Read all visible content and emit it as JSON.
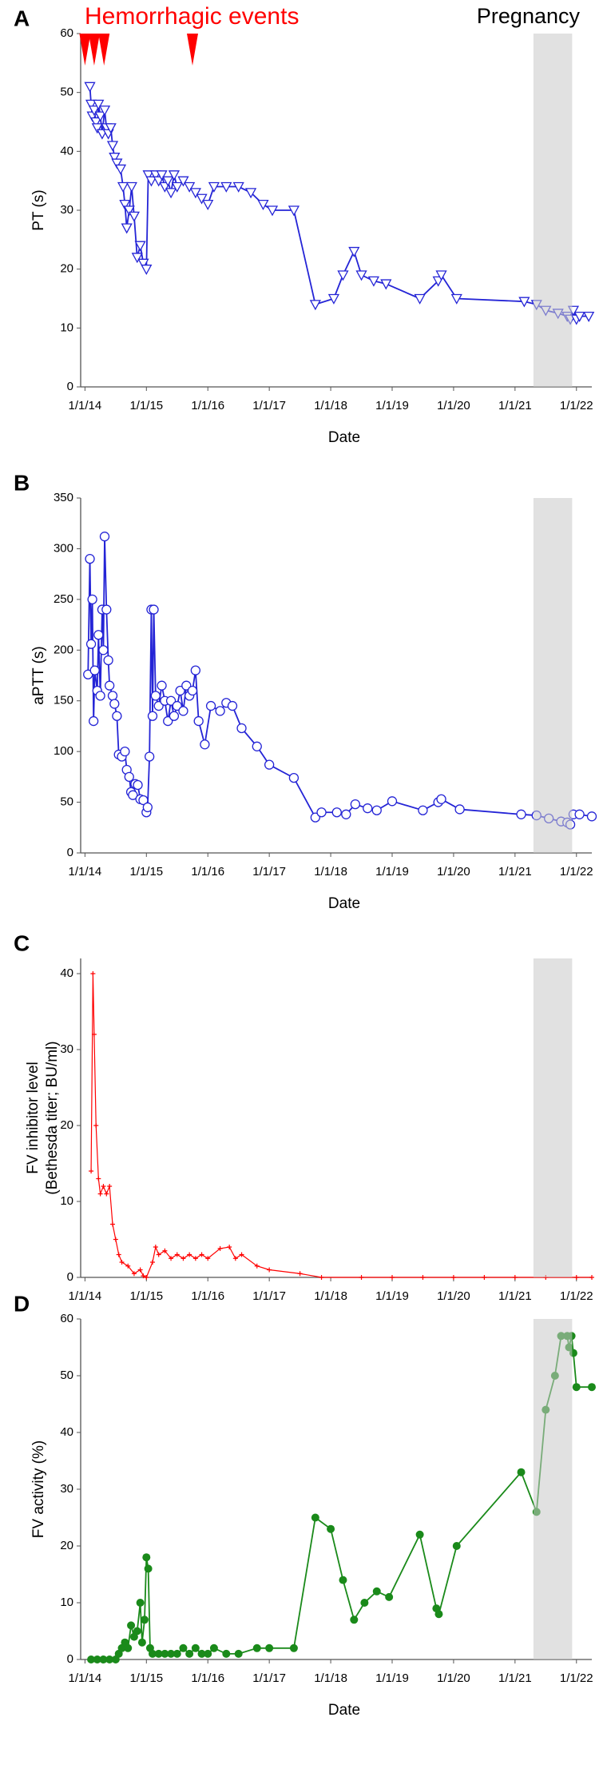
{
  "chart_data": [
    {
      "type": "line",
      "panel": "A",
      "ylabel": [
        "PT (s)"
      ],
      "xlabel": "Date",
      "color": "#2424d6",
      "marker": "triangle-down",
      "event_label": "Hemorrhagic events",
      "event_x": [
        2014.0,
        2014.15,
        2014.31,
        2015.75
      ],
      "event_color": "#ff0000",
      "shaded_label": "Pregnancy",
      "shaded_x": [
        2021.3,
        2021.93
      ],
      "xlim": [
        2013.93,
        2022.25
      ],
      "ylim": [
        0,
        60
      ],
      "yticks": [
        0,
        10,
        20,
        30,
        40,
        50,
        60
      ],
      "xticks": [
        {
          "value": 2014,
          "label": "1/1/14"
        },
        {
          "value": 2015,
          "label": "1/1/15"
        },
        {
          "value": 2016,
          "label": "1/1/16"
        },
        {
          "value": 2017,
          "label": "1/1/17"
        },
        {
          "value": 2018,
          "label": "1/1/18"
        },
        {
          "value": 2019,
          "label": "1/1/19"
        },
        {
          "value": 2020,
          "label": "1/1/20"
        },
        {
          "value": 2021,
          "label": "1/1/21"
        },
        {
          "value": 2022,
          "label": "1/1/22"
        }
      ],
      "x": [
        2014.08,
        2014.1,
        2014.12,
        2014.15,
        2014.18,
        2014.2,
        2014.22,
        2014.25,
        2014.28,
        2014.32,
        2014.35,
        2014.38,
        2014.42,
        2014.45,
        2014.48,
        2014.52,
        2014.58,
        2014.62,
        2014.65,
        2014.68,
        2014.72,
        2014.76,
        2014.8,
        2014.85,
        2014.9,
        2014.95,
        2015.0,
        2015.03,
        2015.08,
        2015.15,
        2015.2,
        2015.25,
        2015.3,
        2015.35,
        2015.4,
        2015.45,
        2015.5,
        2015.6,
        2015.7,
        2015.8,
        2015.9,
        2016.0,
        2016.1,
        2016.3,
        2016.5,
        2016.7,
        2016.9,
        2017.05,
        2017.4,
        2017.75,
        2018.05,
        2018.2,
        2018.38,
        2018.5,
        2018.7,
        2018.9,
        2019.45,
        2019.75,
        2019.8,
        2020.05,
        2021.15,
        2021.35,
        2021.5,
        2021.7,
        2021.85,
        2021.9,
        2021.95,
        2022.0,
        2022.05,
        2022.2
      ],
      "values": [
        51,
        48,
        46,
        47,
        45,
        44,
        48,
        46,
        43,
        47,
        44,
        43,
        44,
        41,
        39,
        38,
        37,
        34,
        31,
        27,
        30,
        34,
        29,
        22,
        24,
        21,
        20,
        36,
        35,
        36,
        35,
        36,
        34,
        35,
        33,
        36,
        34,
        35,
        34,
        33,
        32,
        31,
        34,
        34,
        34,
        33,
        31,
        30,
        30,
        14,
        15,
        19,
        23,
        19,
        18,
        17.5,
        15,
        18,
        19,
        15,
        14.5,
        14,
        13,
        12.5,
        12,
        11.5,
        13,
        11.5,
        12,
        12
      ]
    },
    {
      "type": "line",
      "panel": "B",
      "ylabel": [
        "aPTT (s)"
      ],
      "xlabel": "Date",
      "color": "#2424d6",
      "marker": "circle-open",
      "shaded_x": [
        2021.3,
        2021.93
      ],
      "xlim": [
        2013.93,
        2022.25
      ],
      "ylim": [
        0,
        350
      ],
      "yticks": [
        0,
        50,
        100,
        150,
        200,
        250,
        300,
        350
      ],
      "xticks": [
        {
          "value": 2014,
          "label": "1/1/14"
        },
        {
          "value": 2015,
          "label": "1/1/15"
        },
        {
          "value": 2016,
          "label": "1/1/16"
        },
        {
          "value": 2017,
          "label": "1/1/17"
        },
        {
          "value": 2018,
          "label": "1/1/18"
        },
        {
          "value": 2019,
          "label": "1/1/19"
        },
        {
          "value": 2020,
          "label": "1/1/20"
        },
        {
          "value": 2021,
          "label": "1/1/21"
        },
        {
          "value": 2022,
          "label": "1/1/22"
        }
      ],
      "x": [
        2014.05,
        2014.08,
        2014.1,
        2014.12,
        2014.14,
        2014.16,
        2014.2,
        2014.22,
        2014.25,
        2014.28,
        2014.3,
        2014.32,
        2014.35,
        2014.38,
        2014.4,
        2014.45,
        2014.48,
        2014.52,
        2014.55,
        2014.6,
        2014.65,
        2014.68,
        2014.72,
        2014.75,
        2014.78,
        2014.82,
        2014.86,
        2014.9,
        2014.95,
        2015.0,
        2015.02,
        2015.05,
        2015.08,
        2015.1,
        2015.12,
        2015.15,
        2015.2,
        2015.25,
        2015.3,
        2015.35,
        2015.4,
        2015.45,
        2015.5,
        2015.55,
        2015.6,
        2015.65,
        2015.7,
        2015.75,
        2015.8,
        2015.85,
        2015.95,
        2016.05,
        2016.2,
        2016.3,
        2016.4,
        2016.55,
        2016.8,
        2017.0,
        2017.4,
        2017.75,
        2017.85,
        2018.1,
        2018.25,
        2018.4,
        2018.6,
        2018.75,
        2019.0,
        2019.5,
        2019.75,
        2019.8,
        2020.1,
        2021.1,
        2021.35,
        2021.55,
        2021.75,
        2021.85,
        2021.9,
        2021.95,
        2022.05,
        2022.25
      ],
      "values": [
        176,
        290,
        206,
        250,
        130,
        180,
        160,
        215,
        155,
        240,
        200,
        312,
        240,
        190,
        165,
        155,
        147,
        135,
        97,
        95,
        100,
        82,
        75,
        60,
        57,
        68,
        67,
        53,
        52,
        40,
        45,
        95,
        240,
        135,
        240,
        155,
        145,
        165,
        150,
        130,
        150,
        135,
        145,
        160,
        140,
        165,
        155,
        160,
        180,
        130,
        107,
        145,
        140,
        148,
        145,
        123,
        105,
        87,
        74,
        35,
        40,
        40,
        38,
        48,
        44,
        42,
        51,
        42,
        50,
        53,
        43,
        38,
        37,
        34,
        31,
        30,
        28,
        38,
        38,
        36
      ]
    },
    {
      "type": "line",
      "panel": "C",
      "ylabel": [
        "FV inhibitor level",
        "(Bethesda titer; BU/ml)"
      ],
      "xlabel": "Date",
      "color": "#ff0000",
      "marker": "plus",
      "shaded_x": [
        2021.3,
        2021.93
      ],
      "xlim": [
        2013.93,
        2022.25
      ],
      "ylim": [
        0,
        42
      ],
      "yticks": [
        0,
        10,
        20,
        30,
        40
      ],
      "xticks": [
        {
          "value": 2014,
          "label": "1/1/14"
        },
        {
          "value": 2015,
          "label": "1/1/15"
        },
        {
          "value": 2016,
          "label": "1/1/16"
        },
        {
          "value": 2017,
          "label": "1/1/17"
        },
        {
          "value": 2018,
          "label": "1/1/18"
        },
        {
          "value": 2019,
          "label": "1/1/19"
        },
        {
          "value": 2020,
          "label": "1/1/20"
        },
        {
          "value": 2021,
          "label": "1/1/21"
        },
        {
          "value": 2022,
          "label": "1/1/22"
        }
      ],
      "x": [
        2014.1,
        2014.13,
        2014.15,
        2014.18,
        2014.22,
        2014.25,
        2014.3,
        2014.35,
        2014.4,
        2014.45,
        2014.5,
        2014.55,
        2014.6,
        2014.7,
        2014.8,
        2014.9,
        2014.95,
        2015.0,
        2015.1,
        2015.15,
        2015.2,
        2015.3,
        2015.4,
        2015.5,
        2015.6,
        2015.7,
        2015.8,
        2015.9,
        2016.0,
        2016.2,
        2016.35,
        2016.45,
        2016.55,
        2016.8,
        2017.0,
        2017.5,
        2017.85,
        2018.5,
        2019.0,
        2019.5,
        2020.0,
        2020.5,
        2021.0,
        2021.5,
        2022.0,
        2022.25
      ],
      "values": [
        14,
        40,
        32,
        20,
        13,
        11,
        12,
        11,
        12,
        7,
        5,
        3,
        2,
        1.5,
        0.5,
        1,
        0.2,
        0,
        2,
        4,
        3,
        3.5,
        2.5,
        3,
        2.5,
        3,
        2.5,
        3,
        2.5,
        3.8,
        4,
        2.5,
        3,
        1.5,
        1,
        0.5,
        0,
        0,
        0,
        0,
        0,
        0,
        0,
        0,
        0,
        0
      ]
    },
    {
      "type": "line",
      "panel": "D",
      "ylabel": [
        "FV activity (%)"
      ],
      "xlabel": "Date",
      "color": "#1a8a1a",
      "marker": "circle",
      "shaded_x": [
        2021.3,
        2021.93
      ],
      "xlim": [
        2013.93,
        2022.25
      ],
      "ylim": [
        0,
        60
      ],
      "yticks": [
        0,
        10,
        20,
        30,
        40,
        50,
        60
      ],
      "xticks": [
        {
          "value": 2014,
          "label": "1/1/14"
        },
        {
          "value": 2015,
          "label": "1/1/15"
        },
        {
          "value": 2016,
          "label": "1/1/16"
        },
        {
          "value": 2017,
          "label": "1/1/17"
        },
        {
          "value": 2018,
          "label": "1/1/18"
        },
        {
          "value": 2019,
          "label": "1/1/19"
        },
        {
          "value": 2020,
          "label": "1/1/20"
        },
        {
          "value": 2021,
          "label": "1/1/21"
        },
        {
          "value": 2022,
          "label": "1/1/22"
        }
      ],
      "x": [
        2014.1,
        2014.2,
        2014.3,
        2014.4,
        2014.5,
        2014.55,
        2014.6,
        2014.65,
        2014.7,
        2014.75,
        2014.8,
        2014.85,
        2014.9,
        2014.93,
        2014.97,
        2015.0,
        2015.03,
        2015.06,
        2015.1,
        2015.2,
        2015.3,
        2015.4,
        2015.5,
        2015.6,
        2015.7,
        2015.8,
        2015.9,
        2016.0,
        2016.1,
        2016.3,
        2016.5,
        2016.8,
        2017.0,
        2017.4,
        2017.75,
        2018.0,
        2018.2,
        2018.38,
        2018.55,
        2018.75,
        2018.95,
        2019.45,
        2019.72,
        2019.76,
        2020.05,
        2021.1,
        2021.35,
        2021.5,
        2021.65,
        2021.75,
        2021.85,
        2021.88,
        2021.92,
        2021.95,
        2022.0,
        2022.25
      ],
      "values": [
        0,
        0,
        0,
        0,
        0,
        1,
        2,
        3,
        2,
        6,
        4,
        5,
        10,
        3,
        7,
        18,
        16,
        2,
        1,
        1,
        1,
        1,
        1,
        2,
        1,
        2,
        1,
        1,
        2,
        1,
        1,
        2,
        2,
        2,
        25,
        23,
        14,
        7,
        10,
        12,
        11,
        22,
        9,
        8,
        20,
        33,
        26,
        44,
        50,
        57,
        57,
        55,
        57,
        54,
        48,
        48
      ]
    }
  ]
}
